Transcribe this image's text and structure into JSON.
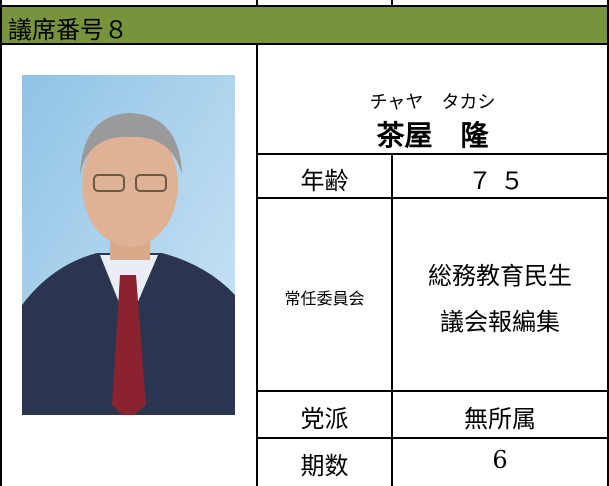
{
  "header": {
    "title": "議席番号８"
  },
  "member": {
    "reading": "チャヤ　タカシ",
    "name": "茶屋　隆"
  },
  "table": {
    "rows": [
      {
        "label": "年齢",
        "value": "７５"
      },
      {
        "label": "常任委員会",
        "values": [
          "総務教育民生",
          "議会報編集"
        ]
      },
      {
        "label": "党派",
        "value": "無所属"
      },
      {
        "label": "期数",
        "value": "6"
      }
    ]
  }
}
